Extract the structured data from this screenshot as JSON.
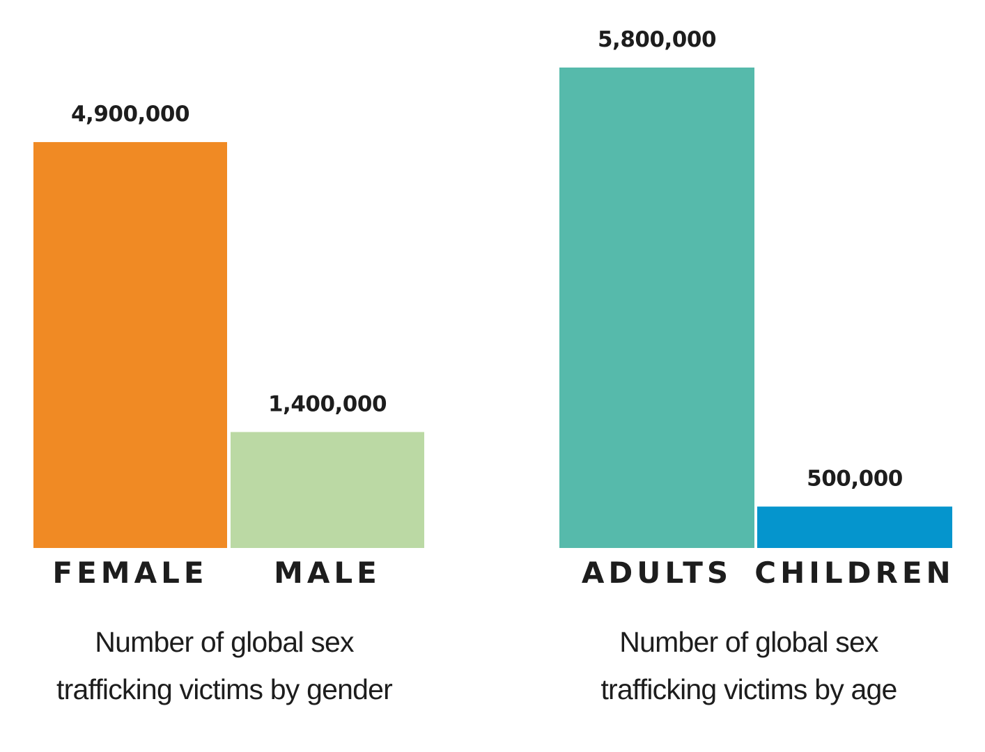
{
  "chart_data": [
    {
      "type": "bar",
      "title": [
        "Number of global sex",
        "trafficking victims by gender"
      ],
      "categories": [
        "FEMALE",
        "MALE"
      ],
      "values": [
        4900000,
        1400000
      ],
      "value_labels": [
        "4,900,000",
        "1,400,000"
      ],
      "colors": [
        "#f08a24",
        "#bbd9a4"
      ],
      "ylim": [
        0,
        5800000
      ],
      "grid": false,
      "legend": "none"
    },
    {
      "type": "bar",
      "title": [
        "Number of global sex",
        "trafficking victims by age"
      ],
      "categories": [
        "ADULTS",
        "CHILDREN"
      ],
      "values": [
        5800000,
        500000
      ],
      "value_labels": [
        "5,800,000",
        "500,000"
      ],
      "colors": [
        "#56baab",
        "#0595cd"
      ],
      "ylim": [
        0,
        5800000
      ],
      "grid": false,
      "legend": "none"
    }
  ]
}
